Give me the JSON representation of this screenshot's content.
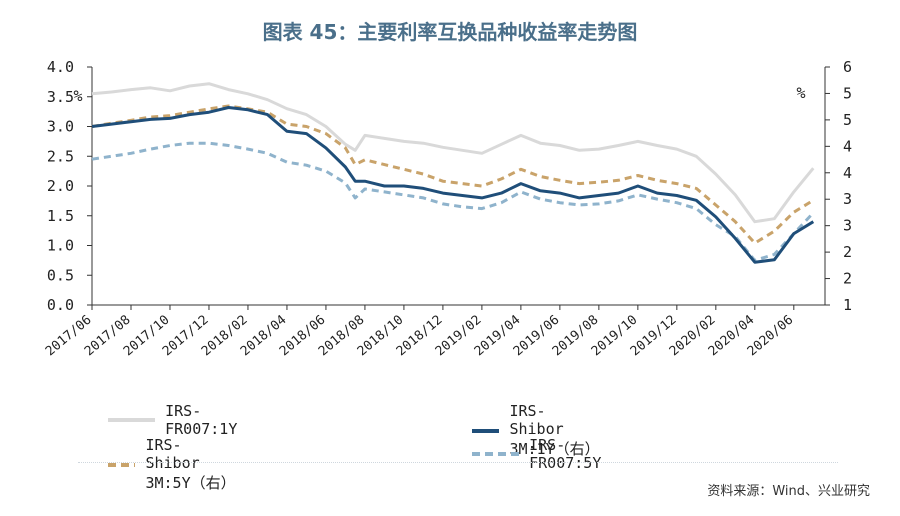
{
  "title": "图表 45：主要利率互换品种收益率走势图",
  "source": "资料来源：Wind、兴业研究",
  "chart_data": {
    "type": "line",
    "left_unit": "%",
    "right_unit": "%",
    "y_left": {
      "ticks": [
        "0.0",
        "0.5",
        "1.0",
        "1.5",
        "2.0",
        "2.5",
        "3.0",
        "3.5",
        "4.0"
      ],
      "lim": [
        0,
        4
      ]
    },
    "y_right": {
      "ticks": [
        "1",
        "2",
        "2",
        "3",
        "3",
        "4",
        "4",
        "5",
        "5",
        "6"
      ],
      "lim": [
        1,
        6
      ]
    },
    "x_ticks": [
      "2017/06",
      "2017/08",
      "2017/10",
      "2017/12",
      "2018/02",
      "2018/04",
      "2018/06",
      "2018/08",
      "2018/10",
      "2018/12",
      "2019/02",
      "2019/04",
      "2019/06",
      "2019/08",
      "2019/10",
      "2019/12",
      "2020/02",
      "2020/04",
      "2020/06"
    ],
    "x_range": [
      "2017/06",
      "2020/07"
    ],
    "series": [
      {
        "name": "IRS-FR007:1Y",
        "axis": "left",
        "color": "#d9d9d9",
        "style": "solid",
        "points": [
          [
            "2017/06",
            3.55
          ],
          [
            "2017/07",
            3.58
          ],
          [
            "2017/08",
            3.62
          ],
          [
            "2017/09",
            3.65
          ],
          [
            "2017/10",
            3.6
          ],
          [
            "2017/11",
            3.68
          ],
          [
            "2017/12",
            3.72
          ],
          [
            "2018/01",
            3.62
          ],
          [
            "2018/02",
            3.55
          ],
          [
            "2018/03",
            3.45
          ],
          [
            "2018/04",
            3.3
          ],
          [
            "2018/05",
            3.2
          ],
          [
            "2018/06",
            3.0
          ],
          [
            "2018/07",
            2.7
          ],
          [
            "2018/07b",
            2.6
          ],
          [
            "2018/08",
            2.85
          ],
          [
            "2018/09",
            2.8
          ],
          [
            "2018/10",
            2.75
          ],
          [
            "2018/11",
            2.72
          ],
          [
            "2018/12",
            2.65
          ],
          [
            "2019/01",
            2.6
          ],
          [
            "2019/02",
            2.55
          ],
          [
            "2019/03",
            2.7
          ],
          [
            "2019/04",
            2.85
          ],
          [
            "2019/05",
            2.72
          ],
          [
            "2019/06",
            2.68
          ],
          [
            "2019/07",
            2.6
          ],
          [
            "2019/08",
            2.62
          ],
          [
            "2019/09",
            2.68
          ],
          [
            "2019/10",
            2.75
          ],
          [
            "2019/11",
            2.68
          ],
          [
            "2019/12",
            2.62
          ],
          [
            "2020/01",
            2.5
          ],
          [
            "2020/02",
            2.2
          ],
          [
            "2020/03",
            1.85
          ],
          [
            "2020/04",
            1.4
          ],
          [
            "2020/05",
            1.45
          ],
          [
            "2020/06",
            1.9
          ],
          [
            "2020/07",
            2.3
          ]
        ]
      },
      {
        "name": "IRS-Shibor 3M:1Y（右）",
        "axis": "right",
        "color": "#1f4e79",
        "style": "solid",
        "points": [
          [
            "2017/06",
            4.75
          ],
          [
            "2017/07",
            4.8
          ],
          [
            "2017/08",
            4.85
          ],
          [
            "2017/09",
            4.9
          ],
          [
            "2017/10",
            4.92
          ],
          [
            "2017/11",
            5.0
          ],
          [
            "2017/12",
            5.05
          ],
          [
            "2018/01",
            5.15
          ],
          [
            "2018/02",
            5.1
          ],
          [
            "2018/03",
            5.0
          ],
          [
            "2018/04",
            4.65
          ],
          [
            "2018/05",
            4.6
          ],
          [
            "2018/06",
            4.3
          ],
          [
            "2018/07",
            3.9
          ],
          [
            "2018/07b",
            3.6
          ],
          [
            "2018/08",
            3.6
          ],
          [
            "2018/09",
            3.5
          ],
          [
            "2018/10",
            3.5
          ],
          [
            "2018/11",
            3.45
          ],
          [
            "2018/12",
            3.35
          ],
          [
            "2019/01",
            3.3
          ],
          [
            "2019/02",
            3.25
          ],
          [
            "2019/03",
            3.35
          ],
          [
            "2019/04",
            3.55
          ],
          [
            "2019/05",
            3.4
          ],
          [
            "2019/06",
            3.35
          ],
          [
            "2019/07",
            3.25
          ],
          [
            "2019/08",
            3.3
          ],
          [
            "2019/09",
            3.35
          ],
          [
            "2019/10",
            3.5
          ],
          [
            "2019/11",
            3.35
          ],
          [
            "2019/12",
            3.3
          ],
          [
            "2020/01",
            3.2
          ],
          [
            "2020/02",
            2.85
          ],
          [
            "2020/03",
            2.4
          ],
          [
            "2020/04",
            1.9
          ],
          [
            "2020/05",
            1.95
          ],
          [
            "2020/06",
            2.5
          ],
          [
            "2020/07",
            2.75
          ]
        ]
      },
      {
        "name": "IRS-Shibor 3M:5Y（右）",
        "axis": "right",
        "color": "#c9a36a",
        "style": "dashed",
        "points": [
          [
            "2017/06",
            4.75
          ],
          [
            "2017/07",
            4.82
          ],
          [
            "2017/08",
            4.88
          ],
          [
            "2017/09",
            4.95
          ],
          [
            "2017/10",
            4.98
          ],
          [
            "2017/11",
            5.05
          ],
          [
            "2017/12",
            5.12
          ],
          [
            "2018/01",
            5.18
          ],
          [
            "2018/02",
            5.12
          ],
          [
            "2018/03",
            5.05
          ],
          [
            "2018/04",
            4.8
          ],
          [
            "2018/05",
            4.75
          ],
          [
            "2018/06",
            4.6
          ],
          [
            "2018/07",
            4.3
          ],
          [
            "2018/07b",
            3.95
          ],
          [
            "2018/08",
            4.05
          ],
          [
            "2018/09",
            3.95
          ],
          [
            "2018/10",
            3.85
          ],
          [
            "2018/11",
            3.75
          ],
          [
            "2018/12",
            3.6
          ],
          [
            "2019/01",
            3.55
          ],
          [
            "2019/02",
            3.5
          ],
          [
            "2019/03",
            3.65
          ],
          [
            "2019/04",
            3.85
          ],
          [
            "2019/05",
            3.7
          ],
          [
            "2019/06",
            3.62
          ],
          [
            "2019/07",
            3.55
          ],
          [
            "2019/08",
            3.58
          ],
          [
            "2019/09",
            3.62
          ],
          [
            "2019/10",
            3.72
          ],
          [
            "2019/11",
            3.62
          ],
          [
            "2019/12",
            3.55
          ],
          [
            "2020/01",
            3.45
          ],
          [
            "2020/02",
            3.1
          ],
          [
            "2020/03",
            2.75
          ],
          [
            "2020/04",
            2.3
          ],
          [
            "2020/05",
            2.55
          ],
          [
            "2020/06",
            2.95
          ],
          [
            "2020/07",
            3.2
          ]
        ]
      },
      {
        "name": "IRS-FR007:5Y",
        "axis": "left",
        "color": "#8fb3cc",
        "style": "dashed",
        "points": [
          [
            "2017/06",
            2.45
          ],
          [
            "2017/07",
            2.5
          ],
          [
            "2017/08",
            2.55
          ],
          [
            "2017/09",
            2.62
          ],
          [
            "2017/10",
            2.68
          ],
          [
            "2017/11",
            2.72
          ],
          [
            "2017/12",
            2.72
          ],
          [
            "2018/01",
            2.68
          ],
          [
            "2018/02",
            2.62
          ],
          [
            "2018/03",
            2.55
          ],
          [
            "2018/04",
            2.4
          ],
          [
            "2018/05",
            2.35
          ],
          [
            "2018/06",
            2.25
          ],
          [
            "2018/07",
            2.05
          ],
          [
            "2018/07b",
            1.8
          ],
          [
            "2018/08",
            1.95
          ],
          [
            "2018/09",
            1.9
          ],
          [
            "2018/10",
            1.85
          ],
          [
            "2018/11",
            1.8
          ],
          [
            "2018/12",
            1.7
          ],
          [
            "2019/01",
            1.65
          ],
          [
            "2019/02",
            1.62
          ],
          [
            "2019/03",
            1.72
          ],
          [
            "2019/04",
            1.9
          ],
          [
            "2019/05",
            1.78
          ],
          [
            "2019/06",
            1.72
          ],
          [
            "2019/07",
            1.68
          ],
          [
            "2019/08",
            1.7
          ],
          [
            "2019/09",
            1.75
          ],
          [
            "2019/10",
            1.85
          ],
          [
            "2019/11",
            1.78
          ],
          [
            "2019/12",
            1.72
          ],
          [
            "2020/01",
            1.62
          ],
          [
            "2020/02",
            1.35
          ],
          [
            "2020/03",
            1.15
          ],
          [
            "2020/04",
            0.75
          ],
          [
            "2020/05",
            0.85
          ],
          [
            "2020/06",
            1.2
          ],
          [
            "2020/07",
            1.55
          ]
        ]
      }
    ],
    "grid": false,
    "legend_placement": "bottom"
  }
}
